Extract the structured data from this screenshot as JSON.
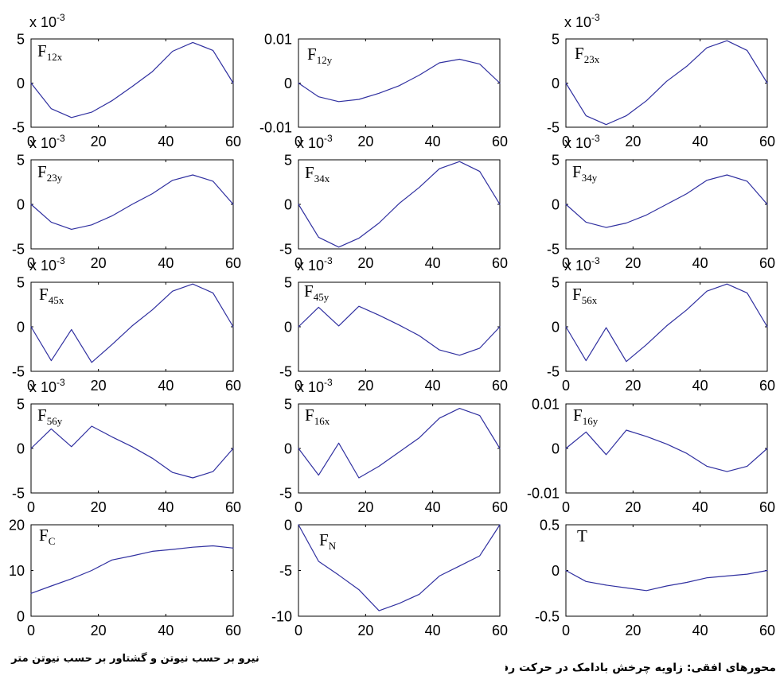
{
  "captions": {
    "force_units": "نیرو بر حسب نیوتن و گشتاور بر حسب نیوتن متر",
    "horizontal_axes": "محورهای افقی: زاویه چرخش بادامک در حرکت رفت"
  },
  "colors": {
    "line": "#3030a0",
    "axes": "#000000",
    "background": "#ffffff"
  },
  "chart_data": [
    {
      "type": "line",
      "grid": false,
      "label": {
        "main": "F",
        "sub": "12x"
      },
      "scale_label": {
        "base": "x 10",
        "exp": "-3"
      },
      "x": [
        0,
        6,
        12,
        18,
        24,
        30,
        36,
        42,
        48,
        54,
        60
      ],
      "y": [
        0,
        -2.9,
        -3.9,
        -3.3,
        -2.0,
        -0.4,
        1.3,
        3.6,
        4.6,
        3.7,
        0
      ],
      "xlim": [
        0,
        60
      ],
      "ylim": [
        -5,
        5
      ],
      "xticks": [
        0,
        20,
        40,
        60
      ],
      "xticklabels": [
        "0",
        "20",
        "40",
        "60"
      ],
      "yticks": [
        5,
        0,
        -5
      ],
      "yticklabels": [
        "5",
        "0",
        "-5"
      ]
    },
    {
      "type": "line",
      "grid": false,
      "label": {
        "main": "F",
        "sub": "12y"
      },
      "x": [
        0,
        6,
        12,
        18,
        24,
        30,
        36,
        42,
        48,
        54,
        60
      ],
      "y": [
        0,
        -0.0031,
        -0.0042,
        -0.0037,
        -0.0023,
        -0.0006,
        0.0018,
        0.0046,
        0.0054,
        0.0043,
        0
      ],
      "xlim": [
        0,
        60
      ],
      "ylim": [
        -0.01,
        0.01
      ],
      "xticks": [
        0,
        20,
        40,
        60
      ],
      "xticklabels": [
        "0",
        "20",
        "40",
        "60"
      ],
      "yticks": [
        0.01,
        0,
        -0.01
      ],
      "yticklabels": [
        "0.01",
        "0",
        "-0.01"
      ]
    },
    {
      "type": "line",
      "grid": false,
      "label": {
        "main": "F",
        "sub": "23x"
      },
      "scale_label": {
        "base": "x 10",
        "exp": "-3"
      },
      "x": [
        0,
        6,
        12,
        18,
        24,
        30,
        36,
        42,
        48,
        54,
        60
      ],
      "y": [
        0,
        -3.7,
        -4.7,
        -3.7,
        -2.0,
        0.2,
        1.9,
        4.0,
        4.8,
        3.7,
        0
      ],
      "xlim": [
        0,
        60
      ],
      "ylim": [
        -5,
        5
      ],
      "xticks": [
        0,
        20,
        40,
        60
      ],
      "xticklabels": [
        "0",
        "20",
        "40",
        "60"
      ],
      "yticks": [
        5,
        0,
        -5
      ],
      "yticklabels": [
        "5",
        "0",
        "-5"
      ]
    },
    {
      "type": "line",
      "grid": false,
      "label": {
        "main": "F",
        "sub": "23y"
      },
      "scale_label": {
        "base": "x 10",
        "exp": "-3"
      },
      "x": [
        0,
        6,
        12,
        18,
        24,
        30,
        36,
        42,
        48,
        54,
        60
      ],
      "y": [
        0,
        -2.0,
        -2.8,
        -2.3,
        -1.3,
        0.0,
        1.2,
        2.7,
        3.3,
        2.6,
        0
      ],
      "xlim": [
        0,
        60
      ],
      "ylim": [
        -5,
        5
      ],
      "xticks": [
        0,
        20,
        40,
        60
      ],
      "xticklabels": [
        "0",
        "20",
        "40",
        "60"
      ],
      "yticks": [
        5,
        0,
        -5
      ],
      "yticklabels": [
        "5",
        "0",
        "-5"
      ]
    },
    {
      "type": "line",
      "grid": false,
      "label": {
        "main": "F",
        "sub": "34x"
      },
      "scale_label": {
        "base": "x 10",
        "exp": "-3"
      },
      "x": [
        0,
        6,
        12,
        18,
        24,
        30,
        36,
        42,
        48,
        54,
        60
      ],
      "y": [
        0,
        -3.7,
        -4.8,
        -3.8,
        -2.1,
        0.1,
        1.9,
        4.0,
        4.8,
        3.7,
        0
      ],
      "xlim": [
        0,
        60
      ],
      "ylim": [
        -5,
        5
      ],
      "xticks": [
        0,
        20,
        40,
        60
      ],
      "xticklabels": [
        "0",
        "20",
        "40",
        "60"
      ],
      "yticks": [
        5,
        0,
        -5
      ],
      "yticklabels": [
        "5",
        "0",
        "-5"
      ]
    },
    {
      "type": "line",
      "grid": false,
      "label": {
        "main": "F",
        "sub": "34y"
      },
      "scale_label": {
        "base": "x 10",
        "exp": "-3"
      },
      "x": [
        0,
        6,
        12,
        18,
        24,
        30,
        36,
        42,
        48,
        54,
        60
      ],
      "y": [
        0,
        -2.0,
        -2.6,
        -2.1,
        -1.2,
        0.0,
        1.2,
        2.7,
        3.3,
        2.6,
        0
      ],
      "xlim": [
        0,
        60
      ],
      "ylim": [
        -5,
        5
      ],
      "xticks": [
        0,
        20,
        40,
        60
      ],
      "xticklabels": [
        "0",
        "20",
        "40",
        "60"
      ],
      "yticks": [
        5,
        0,
        -5
      ],
      "yticklabels": [
        "5",
        "0",
        "-5"
      ]
    },
    {
      "type": "line",
      "grid": false,
      "label": {
        "main": "F",
        "sub": "45x"
      },
      "scale_label": {
        "base": "x 10",
        "exp": "-3"
      },
      "x": [
        0,
        6,
        12,
        18,
        24,
        30,
        36,
        42,
        48,
        54,
        60
      ],
      "y": [
        0,
        -3.8,
        -0.3,
        -4.0,
        -2.0,
        0.1,
        1.9,
        4.0,
        4.8,
        3.8,
        0
      ],
      "xlim": [
        0,
        60
      ],
      "ylim": [
        -5,
        5
      ],
      "xticks": [
        0,
        20,
        40,
        60
      ],
      "xticklabels": [
        "0",
        "20",
        "40",
        "60"
      ],
      "yticks": [
        5,
        0,
        -5
      ],
      "yticklabels": [
        "5",
        "0",
        "-5"
      ]
    },
    {
      "type": "line",
      "grid": false,
      "label": {
        "main": "F",
        "sub": "45y"
      },
      "scale_label": {
        "base": "x 10",
        "exp": "-3"
      },
      "x": [
        0,
        6,
        12,
        18,
        24,
        30,
        36,
        42,
        48,
        54,
        60
      ],
      "y": [
        0,
        2.2,
        0.1,
        2.3,
        1.3,
        0.2,
        -1.0,
        -2.6,
        -3.2,
        -2.4,
        0
      ],
      "xlim": [
        0,
        60
      ],
      "ylim": [
        -5,
        5
      ],
      "xticks": [
        0,
        20,
        40,
        60
      ],
      "xticklabels": [
        "0",
        "20",
        "40",
        "60"
      ],
      "yticks": [
        5,
        0,
        -5
      ],
      "yticklabels": [
        "5",
        "0",
        "-5"
      ]
    },
    {
      "type": "line",
      "grid": false,
      "label": {
        "main": "F",
        "sub": "56x"
      },
      "scale_label": {
        "base": "x 10",
        "exp": "-3"
      },
      "x": [
        0,
        6,
        12,
        18,
        24,
        30,
        36,
        42,
        48,
        54,
        60
      ],
      "y": [
        0,
        -3.8,
        -0.1,
        -3.9,
        -2.0,
        0.1,
        1.9,
        4.0,
        4.8,
        3.8,
        0
      ],
      "xlim": [
        0,
        60
      ],
      "ylim": [
        -5,
        5
      ],
      "xticks": [
        0,
        20,
        40,
        60
      ],
      "xticklabels": [
        "0",
        "20",
        "40",
        "60"
      ],
      "yticks": [
        5,
        0,
        -5
      ],
      "yticklabels": [
        "5",
        "0",
        "-5"
      ]
    },
    {
      "type": "line",
      "grid": false,
      "label": {
        "main": "F",
        "sub": "56y"
      },
      "scale_label": {
        "base": "x 10",
        "exp": "-3"
      },
      "x": [
        0,
        6,
        12,
        18,
        24,
        30,
        36,
        42,
        48,
        54,
        60
      ],
      "y": [
        0,
        2.2,
        0.2,
        2.5,
        1.3,
        0.2,
        -1.1,
        -2.7,
        -3.3,
        -2.6,
        0
      ],
      "xlim": [
        0,
        60
      ],
      "ylim": [
        -5,
        5
      ],
      "xticks": [
        0,
        20,
        40,
        60
      ],
      "xticklabels": [
        "0",
        "20",
        "40",
        "60"
      ],
      "yticks": [
        5,
        0,
        -5
      ],
      "yticklabels": [
        "5",
        "0",
        "-5"
      ]
    },
    {
      "type": "line",
      "grid": false,
      "label": {
        "main": "F",
        "sub": "16x"
      },
      "scale_label": {
        "base": "x 10",
        "exp": "-3"
      },
      "x": [
        0,
        6,
        12,
        18,
        24,
        30,
        36,
        42,
        48,
        54,
        60
      ],
      "y": [
        0,
        -3.0,
        0.6,
        -3.3,
        -2.0,
        -0.4,
        1.2,
        3.4,
        4.5,
        3.7,
        0
      ],
      "xlim": [
        0,
        60
      ],
      "ylim": [
        -5,
        5
      ],
      "xticks": [
        0,
        20,
        40,
        60
      ],
      "xticklabels": [
        "0",
        "20",
        "40",
        "60"
      ],
      "yticks": [
        5,
        0,
        -5
      ],
      "yticklabels": [
        "5",
        "0",
        "-5"
      ]
    },
    {
      "type": "line",
      "grid": false,
      "label": {
        "main": "F",
        "sub": "16y"
      },
      "x": [
        0,
        6,
        12,
        18,
        24,
        30,
        36,
        42,
        48,
        54,
        60
      ],
      "y": [
        0,
        0.0037,
        -0.0014,
        0.0041,
        0.0027,
        0.001,
        -0.0011,
        -0.004,
        -0.0052,
        -0.004,
        0
      ],
      "xlim": [
        0,
        60
      ],
      "ylim": [
        -0.01,
        0.01
      ],
      "xticks": [
        0,
        20,
        40,
        60
      ],
      "xticklabels": [
        "0",
        "20",
        "40",
        "60"
      ],
      "yticks": [
        0.01,
        0,
        -0.01
      ],
      "yticklabels": [
        "0.01",
        "0",
        "-0.01"
      ]
    },
    {
      "type": "line",
      "grid": false,
      "label": {
        "main": "F",
        "sub": "C"
      },
      "x": [
        0,
        6,
        12,
        18,
        24,
        30,
        36,
        42,
        48,
        54,
        60
      ],
      "y": [
        5.0,
        6.6,
        8.2,
        10.0,
        12.3,
        13.2,
        14.2,
        14.6,
        15.1,
        15.4,
        14.9
      ],
      "xlim": [
        0,
        60
      ],
      "ylim": [
        0,
        20
      ],
      "xticks": [
        0,
        20,
        40,
        60
      ],
      "xticklabels": [
        "0",
        "20",
        "40",
        "60"
      ],
      "yticks": [
        20,
        10,
        0
      ],
      "yticklabels": [
        "20",
        "10",
        "0"
      ]
    },
    {
      "type": "line",
      "grid": false,
      "label": {
        "main": "F",
        "sub": "N"
      },
      "x": [
        0,
        6,
        12,
        18,
        24,
        30,
        36,
        42,
        48,
        54,
        60
      ],
      "y": [
        0,
        -4.0,
        -5.5,
        -7.1,
        -9.4,
        -8.6,
        -7.6,
        -5.6,
        -4.5,
        -3.4,
        0
      ],
      "xlim": [
        0,
        60
      ],
      "ylim": [
        -10,
        0
      ],
      "xticks": [
        0,
        20,
        40,
        60
      ],
      "xticklabels": [
        "0",
        "20",
        "40",
        "60"
      ],
      "yticks": [
        0,
        -5,
        -10
      ],
      "yticklabels": [
        "0",
        "-5",
        "-10"
      ]
    },
    {
      "type": "line",
      "grid": false,
      "label": {
        "main": "T"
      },
      "x": [
        0,
        6,
        12,
        18,
        24,
        30,
        36,
        42,
        48,
        54,
        60
      ],
      "y": [
        0,
        -0.12,
        -0.16,
        -0.19,
        -0.22,
        -0.17,
        -0.13,
        -0.08,
        -0.06,
        -0.04,
        0
      ],
      "xlim": [
        0,
        60
      ],
      "ylim": [
        -0.5,
        0.5
      ],
      "xticks": [
        0,
        20,
        40,
        60
      ],
      "xticklabels": [
        "0",
        "20",
        "40",
        "60"
      ],
      "yticks": [
        0.5,
        0,
        -0.5
      ],
      "yticklabels": [
        "0.5",
        "0",
        "-0.5"
      ]
    }
  ]
}
